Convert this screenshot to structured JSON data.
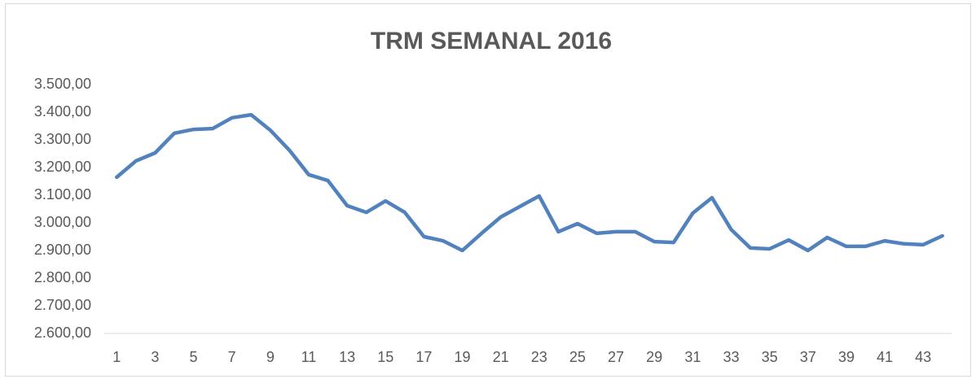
{
  "chart_data": {
    "type": "line",
    "title": "TRM SEMANAL 2016",
    "categories": [
      "1",
      null,
      "3",
      null,
      "5",
      null,
      "7",
      null,
      "9",
      null,
      "11",
      null,
      "13",
      null,
      "15",
      null,
      "17",
      null,
      "19",
      null,
      "21",
      null,
      "23",
      null,
      "25",
      null,
      "27",
      null,
      "29",
      null,
      "31",
      null,
      "33",
      null,
      "35",
      null,
      "37",
      null,
      "39",
      null,
      "41",
      null,
      "43",
      null
    ],
    "values": [
      3165,
      3224,
      3253,
      3324,
      3338,
      3341,
      3380,
      3391,
      3335,
      3262,
      3174,
      3153,
      3062,
      3038,
      3079,
      3038,
      2950,
      2935,
      2900,
      2962,
      3021,
      3059,
      3097,
      2968,
      2997,
      2962,
      2968,
      2968,
      2932,
      2929,
      3035,
      3091,
      2976,
      2909,
      2906,
      2938,
      2900,
      2947,
      2915,
      2915,
      2935,
      2924,
      2921,
      2953
    ],
    "color": "#5182bd",
    "ylim": [
      2600,
      3500
    ],
    "yticks": [
      {
        "value": 2600,
        "label": "2.600,00"
      },
      {
        "value": 2700,
        "label": "2.700,00"
      },
      {
        "value": 2800,
        "label": "2.800,00"
      },
      {
        "value": 2900,
        "label": "2.900,00"
      },
      {
        "value": 3000,
        "label": "3.000,00"
      },
      {
        "value": 3100,
        "label": "3.100,00"
      },
      {
        "value": 3200,
        "label": "3.200,00"
      },
      {
        "value": 3300,
        "label": "3.300,00"
      },
      {
        "value": 3400,
        "label": "3.400,00"
      },
      {
        "value": 3500,
        "label": "3.500,00"
      }
    ],
    "grid": false
  }
}
